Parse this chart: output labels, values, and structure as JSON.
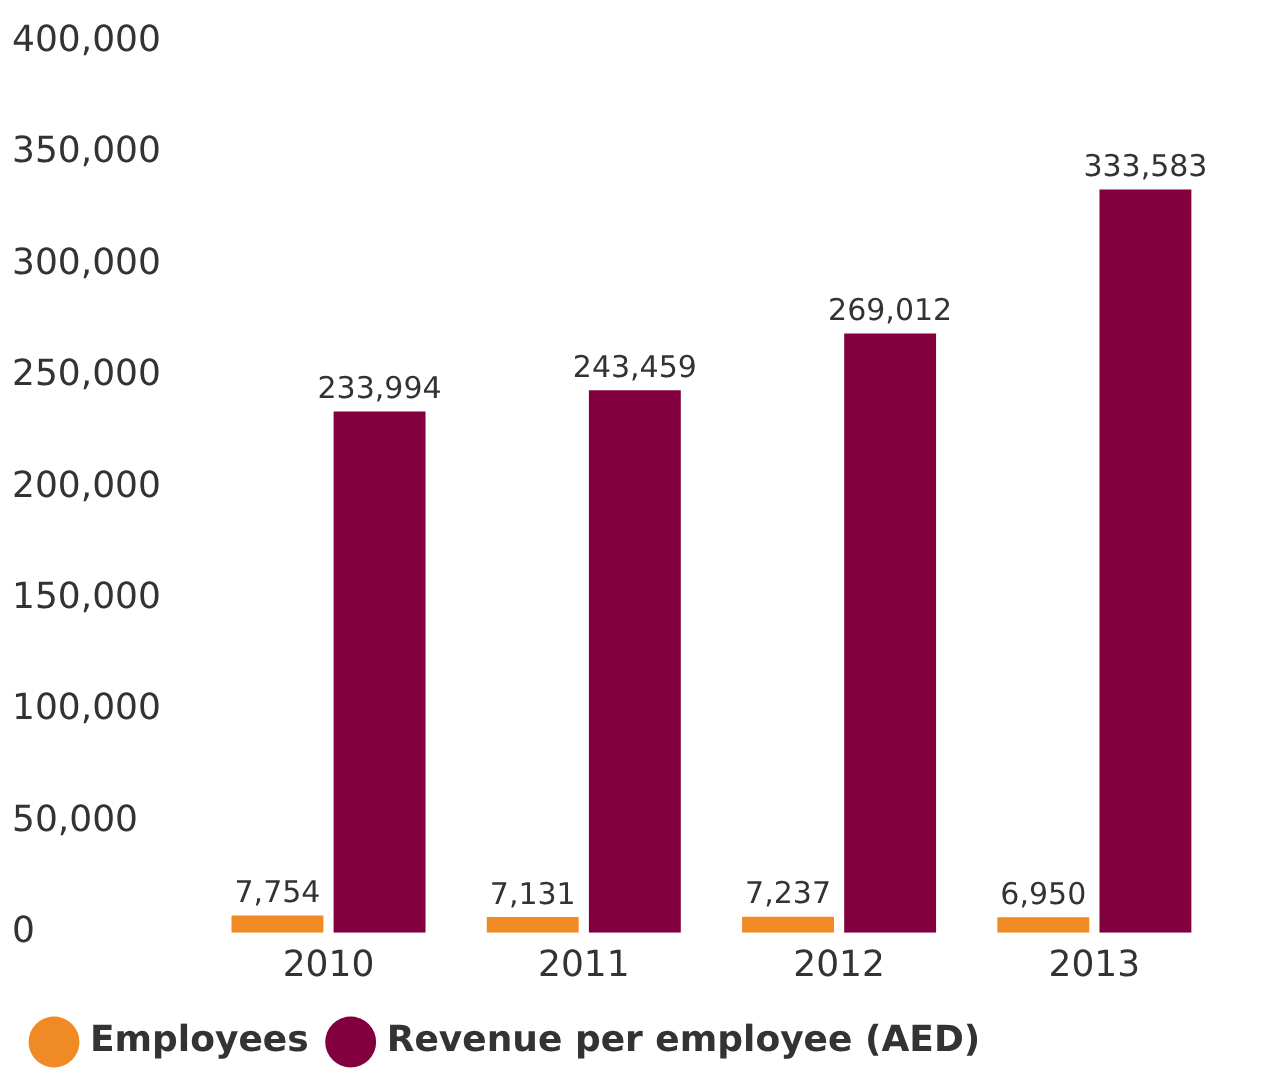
{
  "chart_data": {
    "type": "bar",
    "categories": [
      "2010",
      "2011",
      "2012",
      "2013"
    ],
    "series": [
      {
        "name": "Employees",
        "color": "#f08a24",
        "values": [
          7754,
          7131,
          7237,
          6950
        ],
        "value_labels": [
          "7,754",
          "7,131",
          "7,237",
          "6,950"
        ]
      },
      {
        "name": "Revenue per employee (AED)",
        "color": "#83003f",
        "values": [
          233994,
          243459,
          269012,
          333583
        ],
        "value_labels": [
          "233,994",
          "243,459",
          "269,012",
          "333,583"
        ]
      }
    ],
    "ylim": [
      0,
      400000
    ],
    "yticks": [
      0,
      {
        "value": 50000,
        "label": "50,000"
      },
      {
        "value": 100000,
        "label": "100,000"
      },
      {
        "value": 150000,
        "label": "150,000"
      },
      {
        "value": 200000,
        "label": "200,000"
      },
      {
        "value": 250000,
        "label": "250,000"
      },
      {
        "value": 300000,
        "label": "300,000"
      },
      {
        "value": 350000,
        "label": "350,000"
      },
      {
        "value": 400000,
        "label": "400,000"
      }
    ],
    "grid": false,
    "legend": "bottom"
  }
}
